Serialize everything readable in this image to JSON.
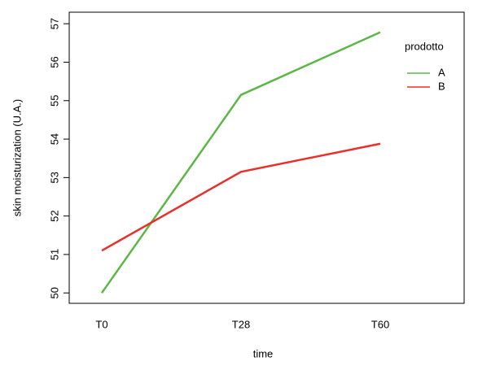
{
  "chart_data": {
    "type": "line",
    "categories": [
      "T0",
      "T28",
      "T60"
    ],
    "series": [
      {
        "name": "A",
        "color": "#5cb846",
        "values": [
          50.0,
          55.15,
          56.78
        ]
      },
      {
        "name": "B",
        "color": "#e8302b",
        "values": [
          51.1,
          53.15,
          53.88
        ]
      }
    ],
    "xlabel": "time",
    "ylabel": "skin moisturization (U.A.)",
    "legend_title": "prodotto",
    "ylim": [
      49.73,
      57.3
    ],
    "yticks": [
      50,
      51,
      52,
      53,
      54,
      55,
      56,
      57
    ]
  }
}
